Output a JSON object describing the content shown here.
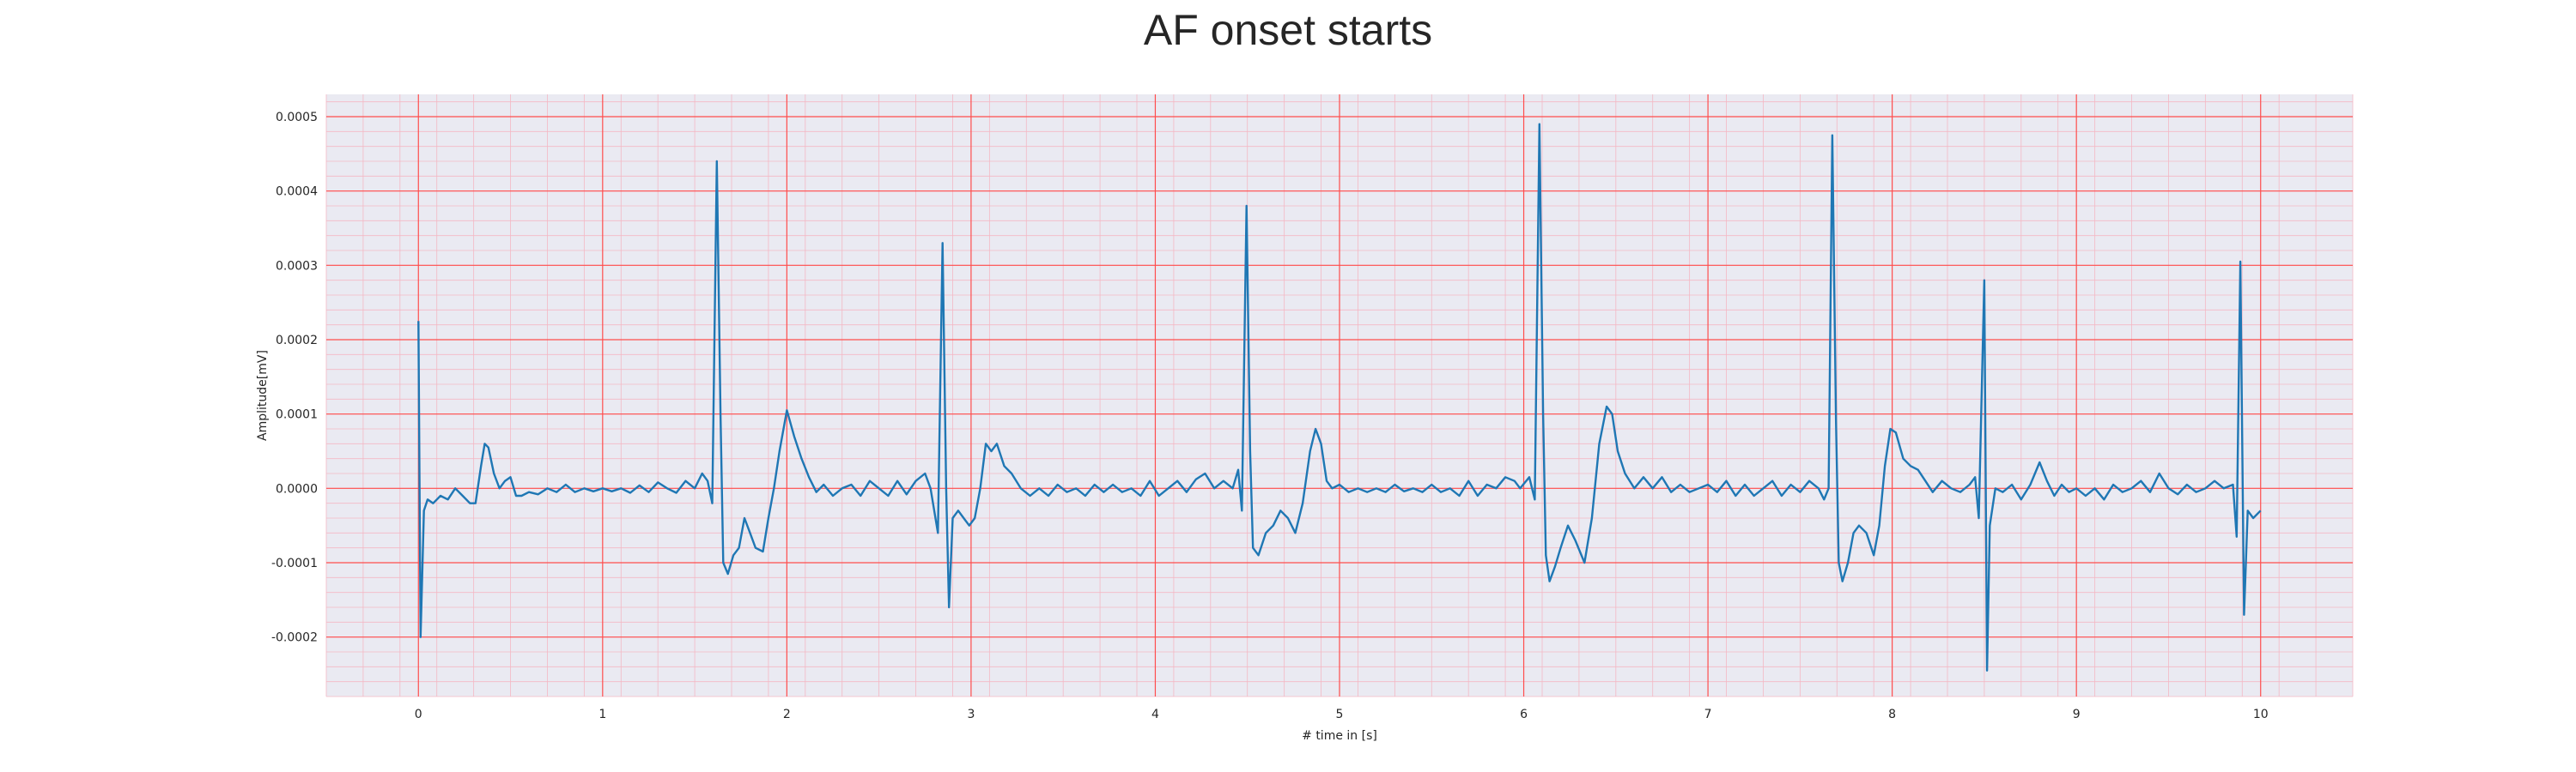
{
  "chart_data": {
    "type": "line",
    "title": "AF onset starts",
    "xlabel": "# time in [s]",
    "ylabel": "Amplitude[mV]",
    "xlim": [
      -0.5,
      10.5
    ],
    "ylim": [
      -0.00028,
      0.00053
    ],
    "x_ticks": [
      0,
      1,
      2,
      3,
      4,
      5,
      6,
      7,
      8,
      9,
      10
    ],
    "x_tick_labels": [
      "0",
      "1",
      "2",
      "3",
      "4",
      "5",
      "6",
      "7",
      "8",
      "9",
      "10"
    ],
    "y_ticks": [
      -0.0002,
      -0.0001,
      0.0,
      0.0001,
      0.0002,
      0.0003,
      0.0004,
      0.0005
    ],
    "y_tick_labels": [
      "-0.0002",
      "-0.0001",
      "0.0000",
      "0.0001",
      "0.0002",
      "0.0003",
      "0.0004",
      "0.0005"
    ],
    "grid": "major red, minor light red",
    "legend": "none",
    "colors": {
      "line": "#1f77b4",
      "background": "#eaeaf2",
      "major_grid": "#ff4d4d",
      "minor_grid": "#f4b8c4"
    },
    "series": [
      {
        "values": [
          [
            0.0,
            0.000225
          ],
          [
            0.012,
            -0.0002
          ],
          [
            0.03,
            -3e-05
          ],
          [
            0.05,
            -1.5e-05
          ],
          [
            0.08,
            -2e-05
          ],
          [
            0.12,
            -1e-05
          ],
          [
            0.16,
            -1.5e-05
          ],
          [
            0.2,
            0.0
          ],
          [
            0.24,
            -1e-05
          ],
          [
            0.28,
            -2e-05
          ],
          [
            0.31,
            -2e-05
          ],
          [
            0.34,
            3e-05
          ],
          [
            0.36,
            6e-05
          ],
          [
            0.38,
            5.5e-05
          ],
          [
            0.41,
            2e-05
          ],
          [
            0.44,
            0.0
          ],
          [
            0.47,
            1e-05
          ],
          [
            0.5,
            1.5e-05
          ],
          [
            0.53,
            -1e-05
          ],
          [
            0.56,
            -1e-05
          ],
          [
            0.6,
            -5e-06
          ],
          [
            0.65,
            -8e-06
          ],
          [
            0.7,
            0.0
          ],
          [
            0.75,
            -5e-06
          ],
          [
            0.8,
            5e-06
          ],
          [
            0.85,
            -5e-06
          ],
          [
            0.9,
            0.0
          ],
          [
            0.95,
            -4e-06
          ],
          [
            1.0,
            0.0
          ],
          [
            1.05,
            -4e-06
          ],
          [
            1.1,
            0.0
          ],
          [
            1.15,
            -6e-06
          ],
          [
            1.2,
            4e-06
          ],
          [
            1.25,
            -5e-06
          ],
          [
            1.3,
            8e-06
          ],
          [
            1.35,
            0.0
          ],
          [
            1.4,
            -6e-06
          ],
          [
            1.45,
            1e-05
          ],
          [
            1.5,
            0.0
          ],
          [
            1.54,
            2e-05
          ],
          [
            1.57,
            1e-05
          ],
          [
            1.595,
            -2e-05
          ],
          [
            1.62,
            0.00044
          ],
          [
            1.64,
            0.0001
          ],
          [
            1.655,
            -0.0001
          ],
          [
            1.68,
            -0.000115
          ],
          [
            1.71,
            -9e-05
          ],
          [
            1.74,
            -8e-05
          ],
          [
            1.77,
            -4e-05
          ],
          [
            1.8,
            -6e-05
          ],
          [
            1.83,
            -8e-05
          ],
          [
            1.87,
            -8.5e-05
          ],
          [
            1.9,
            -4e-05
          ],
          [
            1.93,
            0.0
          ],
          [
            1.96,
            5e-05
          ],
          [
            2.0,
            0.000105
          ],
          [
            2.04,
            7e-05
          ],
          [
            2.08,
            4e-05
          ],
          [
            2.12,
            1.5e-05
          ],
          [
            2.16,
            -5e-06
          ],
          [
            2.2,
            5e-06
          ],
          [
            2.25,
            -1e-05
          ],
          [
            2.3,
            0.0
          ],
          [
            2.35,
            5e-06
          ],
          [
            2.4,
            -1e-05
          ],
          [
            2.45,
            1e-05
          ],
          [
            2.5,
            0.0
          ],
          [
            2.55,
            -1e-05
          ],
          [
            2.6,
            1e-05
          ],
          [
            2.65,
            -8e-06
          ],
          [
            2.7,
            1e-05
          ],
          [
            2.75,
            2e-05
          ],
          [
            2.78,
            0.0
          ],
          [
            2.82,
            -6e-05
          ],
          [
            2.845,
            0.00033
          ],
          [
            2.865,
            0.0
          ],
          [
            2.88,
            -0.00016
          ],
          [
            2.9,
            -4e-05
          ],
          [
            2.93,
            -3e-05
          ],
          [
            2.96,
            -4e-05
          ],
          [
            2.99,
            -5e-05
          ],
          [
            3.02,
            -4e-05
          ],
          [
            3.05,
            0.0
          ],
          [
            3.08,
            6e-05
          ],
          [
            3.11,
            5e-05
          ],
          [
            3.14,
            6e-05
          ],
          [
            3.18,
            3e-05
          ],
          [
            3.22,
            2e-05
          ],
          [
            3.27,
            0.0
          ],
          [
            3.32,
            -1e-05
          ],
          [
            3.37,
            0.0
          ],
          [
            3.42,
            -1e-05
          ],
          [
            3.47,
            5e-06
          ],
          [
            3.52,
            -5e-06
          ],
          [
            3.57,
            0.0
          ],
          [
            3.62,
            -1e-05
          ],
          [
            3.67,
            5e-06
          ],
          [
            3.72,
            -5e-06
          ],
          [
            3.77,
            5e-06
          ],
          [
            3.82,
            -5e-06
          ],
          [
            3.87,
            0.0
          ],
          [
            3.92,
            -1e-05
          ],
          [
            3.97,
            1e-05
          ],
          [
            4.02,
            -1e-05
          ],
          [
            4.07,
            0.0
          ],
          [
            4.12,
            1e-05
          ],
          [
            4.17,
            -5e-06
          ],
          [
            4.22,
            1.2e-05
          ],
          [
            4.27,
            2e-05
          ],
          [
            4.32,
            0.0
          ],
          [
            4.37,
            1e-05
          ],
          [
            4.42,
            0.0
          ],
          [
            4.45,
            2.5e-05
          ],
          [
            4.47,
            -3e-05
          ],
          [
            4.495,
            0.00038
          ],
          [
            4.515,
            5e-05
          ],
          [
            4.53,
            -8e-05
          ],
          [
            4.56,
            -9e-05
          ],
          [
            4.6,
            -6e-05
          ],
          [
            4.64,
            -5e-05
          ],
          [
            4.68,
            -3e-05
          ],
          [
            4.72,
            -4e-05
          ],
          [
            4.76,
            -6e-05
          ],
          [
            4.8,
            -2e-05
          ],
          [
            4.84,
            5e-05
          ],
          [
            4.87,
            8e-05
          ],
          [
            4.9,
            6e-05
          ],
          [
            4.93,
            1e-05
          ],
          [
            4.96,
            0.0
          ],
          [
            5.0,
            5e-06
          ],
          [
            5.05,
            -5e-06
          ],
          [
            5.1,
            0.0
          ],
          [
            5.15,
            -5e-06
          ],
          [
            5.2,
            0.0
          ],
          [
            5.25,
            -5e-06
          ],
          [
            5.3,
            5e-06
          ],
          [
            5.35,
            -4e-06
          ],
          [
            5.4,
            0.0
          ],
          [
            5.45,
            -5e-06
          ],
          [
            5.5,
            5e-06
          ],
          [
            5.55,
            -5e-06
          ],
          [
            5.6,
            0.0
          ],
          [
            5.65,
            -1e-05
          ],
          [
            5.7,
            1e-05
          ],
          [
            5.75,
            -1e-05
          ],
          [
            5.8,
            5e-06
          ],
          [
            5.85,
            0.0
          ],
          [
            5.9,
            1.5e-05
          ],
          [
            5.95,
            1e-05
          ],
          [
            5.98,
            0.0
          ],
          [
            6.03,
            1.5e-05
          ],
          [
            6.06,
            -1.5e-05
          ],
          [
            6.085,
            0.00049
          ],
          [
            6.105,
            0.0001
          ],
          [
            6.12,
            -9e-05
          ],
          [
            6.14,
            -0.000125
          ],
          [
            6.17,
            -0.000105
          ],
          [
            6.2,
            -8e-05
          ],
          [
            6.24,
            -5e-05
          ],
          [
            6.28,
            -7e-05
          ],
          [
            6.33,
            -0.0001
          ],
          [
            6.37,
            -4e-05
          ],
          [
            6.41,
            6e-05
          ],
          [
            6.45,
            0.00011
          ],
          [
            6.48,
            0.0001
          ],
          [
            6.51,
            5e-05
          ],
          [
            6.55,
            2e-05
          ],
          [
            6.6,
            0.0
          ],
          [
            6.65,
            1.5e-05
          ],
          [
            6.7,
            0.0
          ],
          [
            6.75,
            1.5e-05
          ],
          [
            6.8,
            -5e-06
          ],
          [
            6.85,
            5e-06
          ],
          [
            6.9,
            -5e-06
          ],
          [
            6.95,
            0.0
          ],
          [
            7.0,
            5e-06
          ],
          [
            7.05,
            -5e-06
          ],
          [
            7.1,
            1e-05
          ],
          [
            7.15,
            -1e-05
          ],
          [
            7.2,
            5e-06
          ],
          [
            7.25,
            -1e-05
          ],
          [
            7.3,
            0.0
          ],
          [
            7.35,
            1e-05
          ],
          [
            7.4,
            -1e-05
          ],
          [
            7.45,
            5e-06
          ],
          [
            7.5,
            -5e-06
          ],
          [
            7.55,
            1e-05
          ],
          [
            7.6,
            0.0
          ],
          [
            7.63,
            -1.5e-05
          ],
          [
            7.655,
            0.0
          ],
          [
            7.675,
            0.000475
          ],
          [
            7.695,
            9e-05
          ],
          [
            7.71,
            -0.0001
          ],
          [
            7.73,
            -0.000125
          ],
          [
            7.76,
            -0.0001
          ],
          [
            7.79,
            -6e-05
          ],
          [
            7.82,
            -5e-05
          ],
          [
            7.86,
            -6e-05
          ],
          [
            7.9,
            -9e-05
          ],
          [
            7.93,
            -5e-05
          ],
          [
            7.96,
            3e-05
          ],
          [
            7.99,
            8e-05
          ],
          [
            8.02,
            7.5e-05
          ],
          [
            8.06,
            4e-05
          ],
          [
            8.1,
            3e-05
          ],
          [
            8.14,
            2.5e-05
          ],
          [
            8.18,
            1e-05
          ],
          [
            8.22,
            -5e-06
          ],
          [
            8.27,
            1e-05
          ],
          [
            8.32,
            0.0
          ],
          [
            8.37,
            -5e-06
          ],
          [
            8.42,
            5e-06
          ],
          [
            8.45,
            1.5e-05
          ],
          [
            8.47,
            -4e-05
          ],
          [
            8.5,
            0.00028
          ],
          [
            8.515,
            -0.000245
          ],
          [
            8.53,
            -5e-05
          ],
          [
            8.56,
            0.0
          ],
          [
            8.6,
            -5e-06
          ],
          [
            8.65,
            5e-06
          ],
          [
            8.7,
            -1.5e-05
          ],
          [
            8.75,
            5e-06
          ],
          [
            8.8,
            3.5e-05
          ],
          [
            8.84,
            1e-05
          ],
          [
            8.88,
            -1e-05
          ],
          [
            8.92,
            5e-06
          ],
          [
            8.96,
            -5e-06
          ],
          [
            9.0,
            0.0
          ],
          [
            9.05,
            -1e-05
          ],
          [
            9.1,
            0.0
          ],
          [
            9.15,
            -1.5e-05
          ],
          [
            9.2,
            5e-06
          ],
          [
            9.25,
            -5e-06
          ],
          [
            9.3,
            0.0
          ],
          [
            9.35,
            1e-05
          ],
          [
            9.4,
            -5e-06
          ],
          [
            9.45,
            2e-05
          ],
          [
            9.5,
            0.0
          ],
          [
            9.55,
            -8e-06
          ],
          [
            9.6,
            5e-06
          ],
          [
            9.65,
            -5e-06
          ],
          [
            9.7,
            0.0
          ],
          [
            9.75,
            1e-05
          ],
          [
            9.8,
            0.0
          ],
          [
            9.85,
            5e-06
          ],
          [
            9.87,
            -6.5e-05
          ],
          [
            9.89,
            0.000305
          ],
          [
            9.91,
            -0.00017
          ],
          [
            9.93,
            -3e-05
          ],
          [
            9.96,
            -4e-05
          ],
          [
            10.0,
            -3e-05
          ]
        ]
      }
    ]
  }
}
